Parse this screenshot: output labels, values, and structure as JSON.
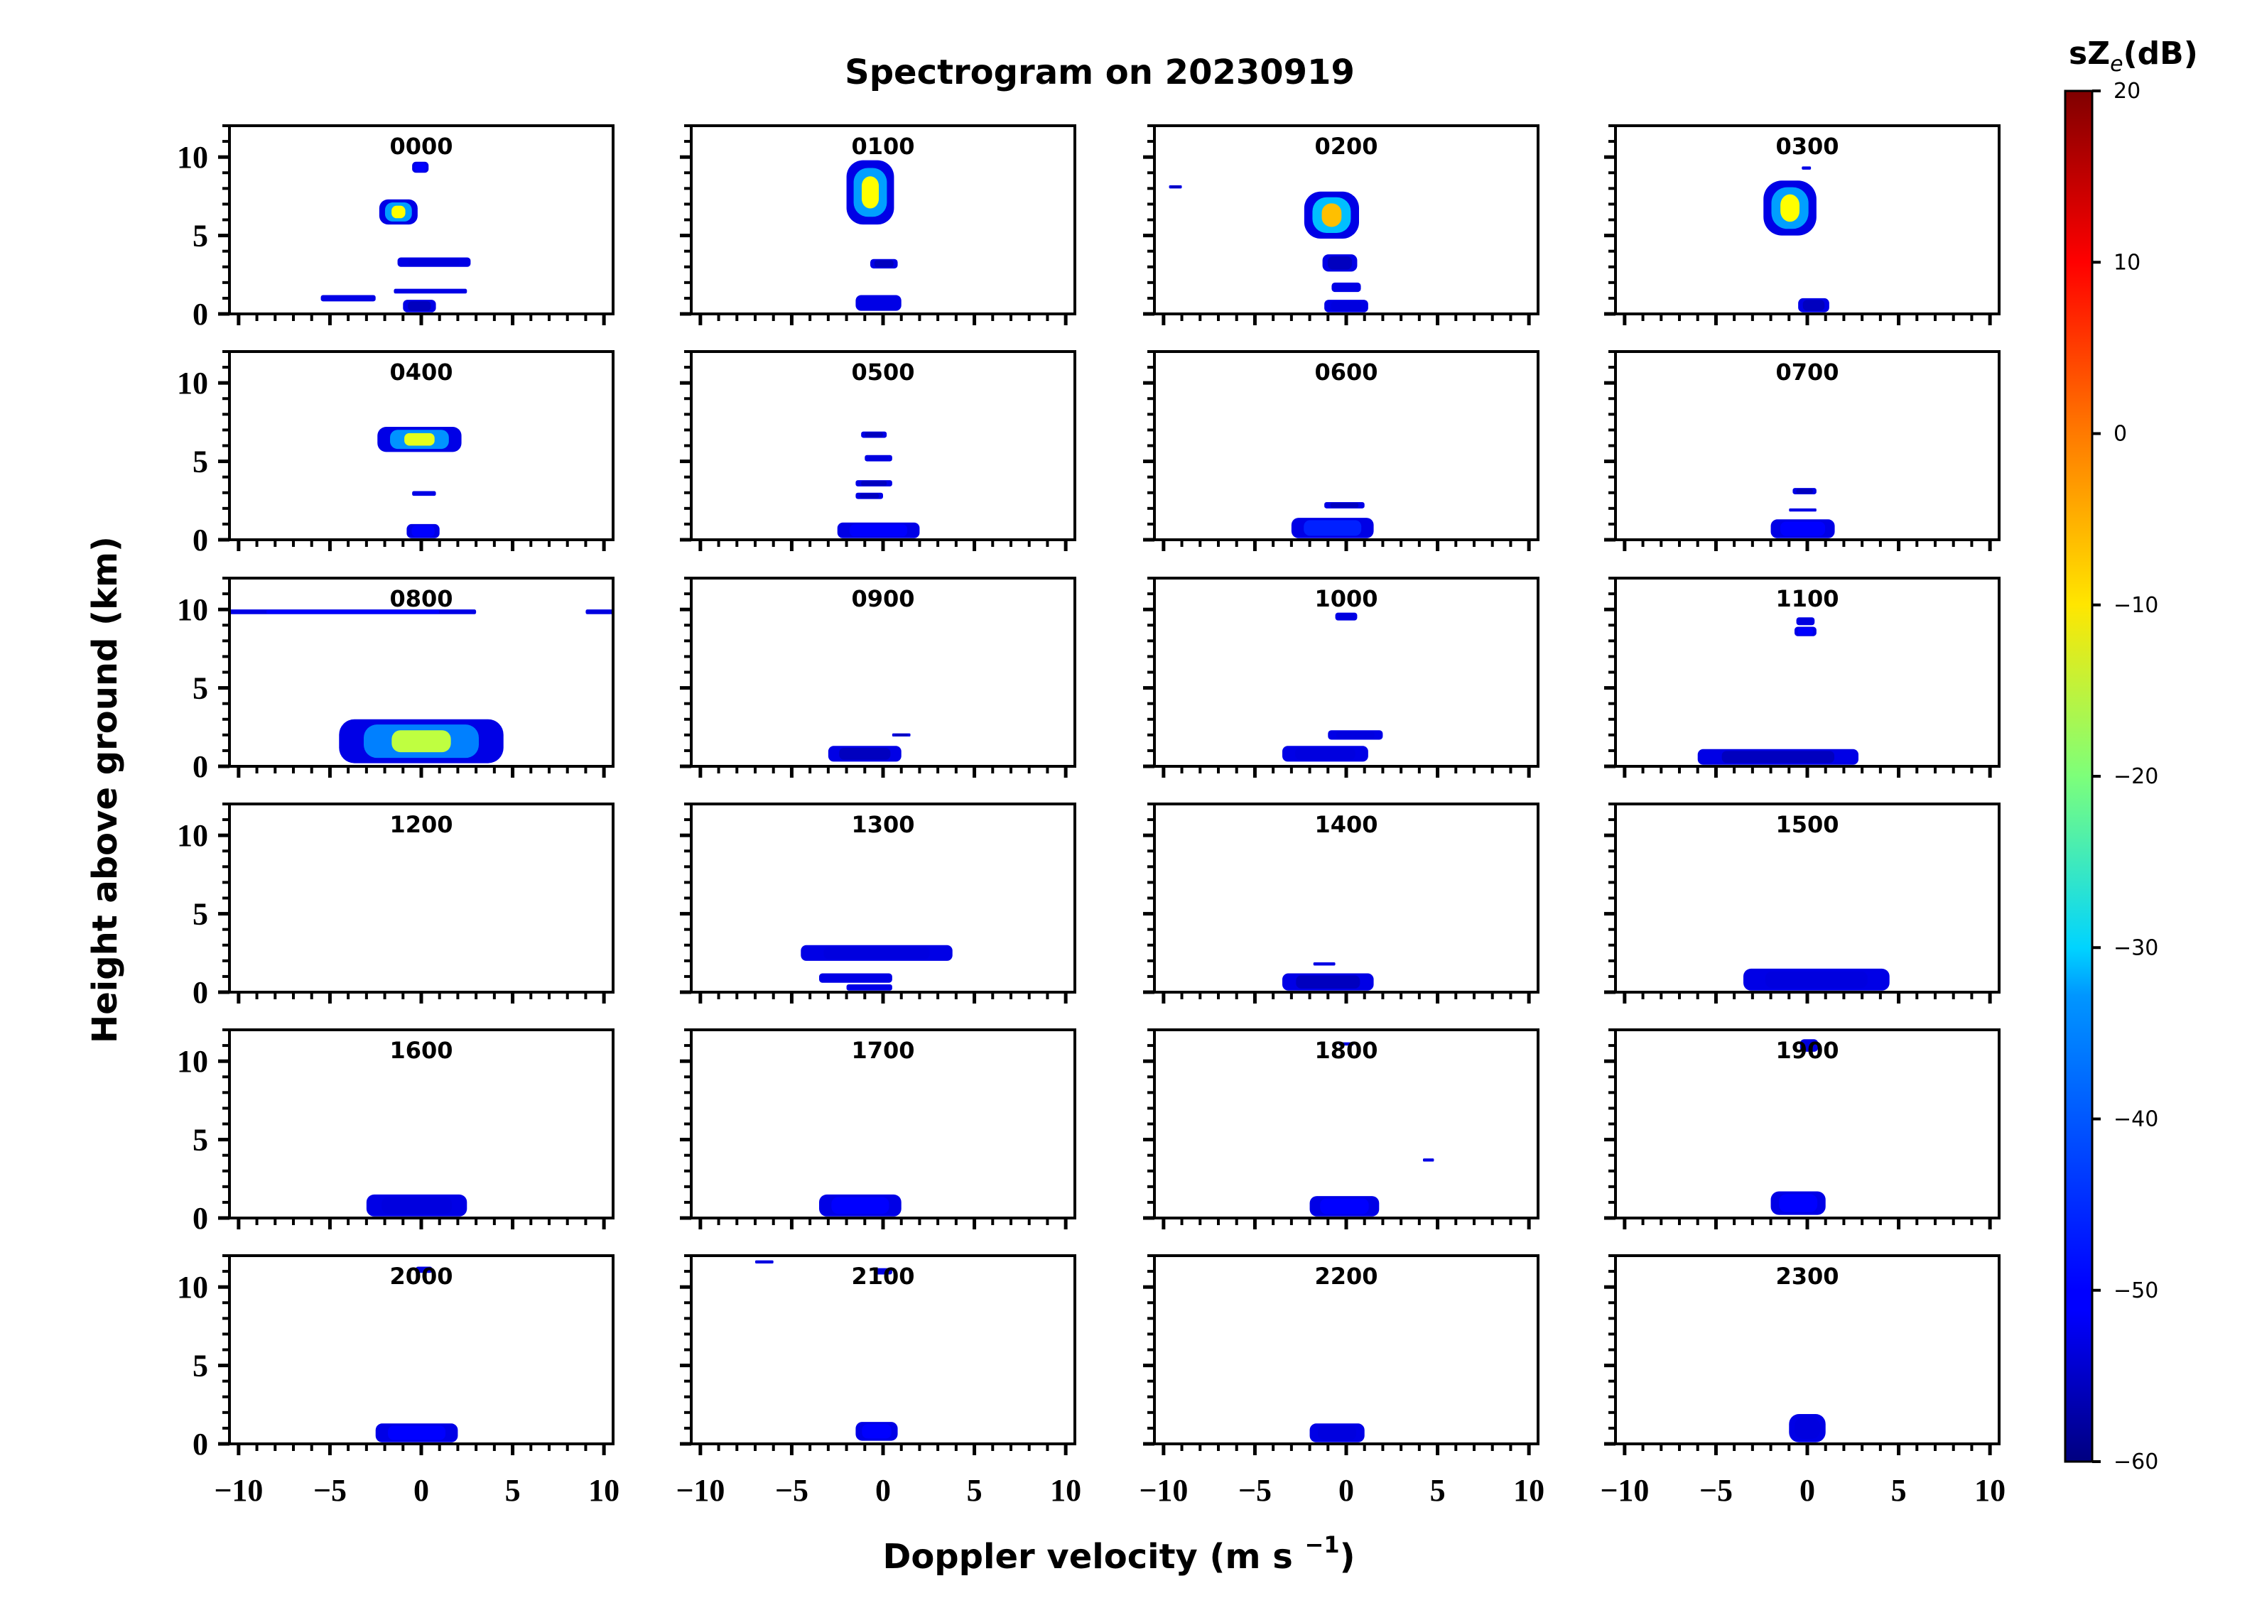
{
  "chart_data": {
    "type": "heatmap",
    "title": "Spectrogram on 20230919",
    "xlabel": "Doppler velocity (m s",
    "xlabel_sup": "−1",
    "xlabel_close": ")",
    "ylabel": "Height above ground (km)",
    "xlim": [
      -10.5,
      10.5
    ],
    "ylim": [
      0,
      12
    ],
    "x_ticks": [
      -10,
      -5,
      0,
      5,
      10
    ],
    "x_tick_labels": [
      "−10",
      "−5",
      "0",
      "5",
      "10"
    ],
    "y_ticks": [
      0,
      5,
      10
    ],
    "y_tick_labels": [
      "0",
      "5",
      "10"
    ],
    "colorbar": {
      "label_prefix": "sZ",
      "label_sub": "e",
      "label_suffix": "(dB)",
      "min": -60,
      "max": 20,
      "ticks": [
        20,
        10,
        0,
        -10,
        -20,
        -30,
        -40,
        -50,
        -60
      ],
      "tick_labels": [
        "20",
        "10",
        "0",
        "−10",
        "−20",
        "−30",
        "−40",
        "−50",
        "−60"
      ],
      "colormap": "jet"
    },
    "panels": [
      {
        "time": "0000",
        "echoes": [
          {
            "x": [
              -0.5,
              0.4
            ],
            "y": [
              9.0,
              9.7
            ],
            "peak": -35
          },
          {
            "x": [
              -2.3,
              -0.2
            ],
            "y": [
              5.7,
              7.3
            ],
            "peak": -10
          },
          {
            "x": [
              -1.3,
              2.7
            ],
            "y": [
              3.0,
              3.6
            ],
            "peak": -40
          },
          {
            "x": [
              -1.5,
              2.5
            ],
            "y": [
              1.3,
              1.6
            ],
            "peak": -50
          },
          {
            "x": [
              -5.5,
              -2.5
            ],
            "y": [
              0.8,
              1.2
            ],
            "peak": -50
          },
          {
            "x": [
              -1.0,
              0.8
            ],
            "y": [
              0.1,
              0.9
            ],
            "peak": -45
          }
        ]
      },
      {
        "time": "0100",
        "echoes": [
          {
            "x": [
              -2.0,
              0.6
            ],
            "y": [
              5.7,
              9.8
            ],
            "peak": -10
          },
          {
            "x": [
              -0.7,
              0.8
            ],
            "y": [
              2.9,
              3.5
            ],
            "peak": -45
          },
          {
            "x": [
              -1.5,
              1.0
            ],
            "y": [
              0.2,
              1.2
            ],
            "peak": -50
          }
        ]
      },
      {
        "time": "0200",
        "echoes": [
          {
            "x": [
              -9.7,
              -9.0
            ],
            "y": [
              8.0,
              8.2
            ],
            "peak": -45
          },
          {
            "x": [
              -2.3,
              0.7
            ],
            "y": [
              4.8,
              7.8
            ],
            "peak": -5
          },
          {
            "x": [
              -1.3,
              0.6
            ],
            "y": [
              2.7,
              3.8
            ],
            "peak": -45
          },
          {
            "x": [
              -0.8,
              0.8
            ],
            "y": [
              1.4,
              2.0
            ],
            "peak": -50
          },
          {
            "x": [
              -1.2,
              1.2
            ],
            "y": [
              0.1,
              0.9
            ],
            "peak": -40
          }
        ]
      },
      {
        "time": "0300",
        "echoes": [
          {
            "x": [
              -2.4,
              0.5
            ],
            "y": [
              5.0,
              8.5
            ],
            "peak": -10
          },
          {
            "x": [
              -0.3,
              0.2
            ],
            "y": [
              9.2,
              9.4
            ],
            "peak": -50
          },
          {
            "x": [
              -0.5,
              1.2
            ],
            "y": [
              0.1,
              1.0
            ],
            "peak": -45
          }
        ]
      },
      {
        "time": "0400",
        "echoes": [
          {
            "x": [
              -2.4,
              2.2
            ],
            "y": [
              5.6,
              7.2
            ],
            "peak": -12
          },
          {
            "x": [
              -0.5,
              0.8
            ],
            "y": [
              2.8,
              3.1
            ],
            "peak": -50
          },
          {
            "x": [
              -0.8,
              1.0
            ],
            "y": [
              0.1,
              1.0
            ],
            "peak": -35
          }
        ]
      },
      {
        "time": "0500",
        "echoes": [
          {
            "x": [
              -1.2,
              0.2
            ],
            "y": [
              6.5,
              6.9
            ],
            "peak": -45
          },
          {
            "x": [
              -1.0,
              0.5
            ],
            "y": [
              5.0,
              5.4
            ],
            "peak": -40
          },
          {
            "x": [
              -1.5,
              0.5
            ],
            "y": [
              3.4,
              3.8
            ],
            "peak": -45
          },
          {
            "x": [
              -1.5,
              0.0
            ],
            "y": [
              2.6,
              3.0
            ],
            "peak": -45
          },
          {
            "x": [
              -2.5,
              2.0
            ],
            "y": [
              0.1,
              1.1
            ],
            "peak": -35
          }
        ]
      },
      {
        "time": "0600",
        "echoes": [
          {
            "x": [
              -1.2,
              1.0
            ],
            "y": [
              2.0,
              2.4
            ],
            "peak": -45
          },
          {
            "x": [
              -3.0,
              1.5
            ],
            "y": [
              0.1,
              1.4
            ],
            "peak": -30
          }
        ]
      },
      {
        "time": "0700",
        "echoes": [
          {
            "x": [
              -0.8,
              0.5
            ],
            "y": [
              2.9,
              3.3
            ],
            "peak": -45
          },
          {
            "x": [
              -1.0,
              0.5
            ],
            "y": [
              1.8,
              2.0
            ],
            "peak": -50
          },
          {
            "x": [
              -2.0,
              1.5
            ],
            "y": [
              0.1,
              1.3
            ],
            "peak": -35
          }
        ]
      },
      {
        "time": "0800",
        "echoes": [
          {
            "x": [
              -10.5,
              3.0
            ],
            "y": [
              9.7,
              10.0
            ],
            "peak": -35
          },
          {
            "x": [
              9.0,
              10.5
            ],
            "y": [
              9.7,
              10.0
            ],
            "peak": -40
          },
          {
            "x": [
              -4.5,
              4.5
            ],
            "y": [
              0.2,
              3.0
            ],
            "peak": -15
          }
        ]
      },
      {
        "time": "0900",
        "echoes": [
          {
            "x": [
              0.5,
              1.5
            ],
            "y": [
              1.9,
              2.1
            ],
            "peak": -45
          },
          {
            "x": [
              -3.0,
              1.0
            ],
            "y": [
              0.3,
              1.3
            ],
            "peak": -45
          }
        ]
      },
      {
        "time": "1000",
        "echoes": [
          {
            "x": [
              -0.6,
              0.6
            ],
            "y": [
              9.3,
              9.8
            ],
            "peak": -40
          },
          {
            "x": [
              -1.0,
              2.0
            ],
            "y": [
              1.7,
              2.3
            ],
            "peak": -40
          },
          {
            "x": [
              -3.5,
              1.2
            ],
            "y": [
              0.3,
              1.3
            ],
            "peak": -40
          }
        ]
      },
      {
        "time": "1100",
        "echoes": [
          {
            "x": [
              -0.6,
              0.4
            ],
            "y": [
              9.0,
              9.5
            ],
            "peak": -40
          },
          {
            "x": [
              -0.7,
              0.5
            ],
            "y": [
              8.3,
              8.9
            ],
            "peak": -35
          },
          {
            "x": [
              -6.0,
              2.8
            ],
            "y": [
              0.1,
              1.1
            ],
            "peak": -45
          }
        ]
      },
      {
        "time": "1200",
        "echoes": []
      },
      {
        "time": "1300",
        "echoes": [
          {
            "x": [
              -4.5,
              3.8
            ],
            "y": [
              2.0,
              3.0
            ],
            "peak": -40
          },
          {
            "x": [
              -3.5,
              0.5
            ],
            "y": [
              0.6,
              1.2
            ],
            "peak": -50
          },
          {
            "x": [
              -2.0,
              0.5
            ],
            "y": [
              0.1,
              0.5
            ],
            "peak": -50
          }
        ]
      },
      {
        "time": "1400",
        "echoes": [
          {
            "x": [
              -1.8,
              -0.6
            ],
            "y": [
              1.7,
              1.9
            ],
            "peak": -50
          },
          {
            "x": [
              -3.5,
              1.5
            ],
            "y": [
              0.1,
              1.2
            ],
            "peak": -45
          }
        ]
      },
      {
        "time": "1500",
        "echoes": [
          {
            "x": [
              -3.5,
              4.5
            ],
            "y": [
              0.1,
              1.5
            ],
            "peak": -40
          }
        ]
      },
      {
        "time": "1600",
        "echoes": [
          {
            "x": [
              -3.0,
              2.5
            ],
            "y": [
              0.1,
              1.5
            ],
            "peak": -40
          }
        ]
      },
      {
        "time": "1700",
        "echoes": [
          {
            "x": [
              -3.5,
              1.0
            ],
            "y": [
              0.1,
              1.5
            ],
            "peak": -35
          }
        ]
      },
      {
        "time": "1800",
        "echoes": [
          {
            "x": [
              -0.4,
              0.4
            ],
            "y": [
              11.0,
              11.2
            ],
            "peak": -40
          },
          {
            "x": [
              4.2,
              4.8
            ],
            "y": [
              3.6,
              3.8
            ],
            "peak": -50
          },
          {
            "x": [
              -2.0,
              1.8
            ],
            "y": [
              0.1,
              1.4
            ],
            "peak": -35
          }
        ]
      },
      {
        "time": "1900",
        "echoes": [
          {
            "x": [
              -0.4,
              0.6
            ],
            "y": [
              10.6,
              11.4
            ],
            "peak": -40
          },
          {
            "x": [
              -2.0,
              1.0
            ],
            "y": [
              0.2,
              1.7
            ],
            "peak": -35
          }
        ]
      },
      {
        "time": "2000",
        "echoes": [
          {
            "x": [
              -0.3,
              0.6
            ],
            "y": [
              10.9,
              11.3
            ],
            "peak": -40
          },
          {
            "x": [
              -2.5,
              2.0
            ],
            "y": [
              0.1,
              1.3
            ],
            "peak": -35
          }
        ]
      },
      {
        "time": "2100",
        "echoes": [
          {
            "x": [
              -7.0,
              -6.0
            ],
            "y": [
              11.5,
              11.7
            ],
            "peak": -40
          },
          {
            "x": [
              -0.4,
              0.5
            ],
            "y": [
              10.8,
              11.2
            ],
            "peak": -40
          },
          {
            "x": [
              -1.5,
              0.8
            ],
            "y": [
              0.2,
              1.4
            ],
            "peak": -35
          }
        ]
      },
      {
        "time": "2200",
        "echoes": [
          {
            "x": [
              -2.0,
              1.0
            ],
            "y": [
              0.1,
              1.3
            ],
            "peak": -40
          }
        ]
      },
      {
        "time": "2300",
        "echoes": [
          {
            "x": [
              -1.0,
              1.0
            ],
            "y": [
              0.1,
              1.9
            ],
            "peak": -40
          }
        ]
      }
    ]
  }
}
